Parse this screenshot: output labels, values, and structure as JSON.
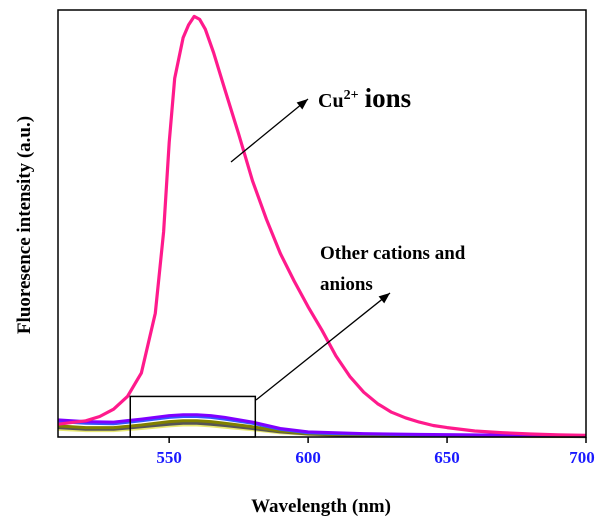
{
  "chart_data": {
    "type": "line",
    "xlabel": "Wavelength (nm)",
    "ylabel": "Fluoresence intensity (a.u.)",
    "xlim": [
      510,
      700
    ],
    "ylim": [
      0,
      1000
    ],
    "x_ticks": [
      550,
      600,
      650,
      700
    ],
    "y_ticks_labeled": false,
    "grid": false,
    "tick_label_color": "#1a1aff",
    "series": [
      {
        "color": "#ff1a8c",
        "x": [
          510,
          520,
          525,
          530,
          535,
          540,
          545,
          548,
          550,
          552,
          555,
          557,
          559,
          561,
          563,
          566,
          570,
          575,
          580,
          585,
          590,
          595,
          600,
          605,
          610,
          615,
          620,
          625,
          630,
          635,
          640,
          645,
          650,
          660,
          670,
          680,
          690,
          700
        ],
        "y": [
          30,
          38,
          48,
          65,
          95,
          150,
          290,
          480,
          690,
          840,
          935,
          965,
          985,
          978,
          955,
          900,
          815,
          710,
          600,
          510,
          430,
          365,
          305,
          250,
          190,
          142,
          105,
          78,
          58,
          45,
          35,
          27,
          22,
          14,
          10,
          7,
          5,
          4
        ]
      },
      {
        "color": "#7f00ff",
        "x": [
          510,
          520,
          530,
          540,
          550,
          555,
          560,
          565,
          570,
          580,
          590,
          600,
          610,
          620,
          640,
          660,
          680,
          700
        ],
        "y": [
          40,
          36,
          35,
          42,
          50,
          52,
          52,
          50,
          46,
          35,
          20,
          12,
          10,
          8,
          6,
          5,
          4,
          3
        ]
      },
      {
        "color": "#3355ff",
        "x": [
          510,
          520,
          530,
          540,
          550,
          555,
          560,
          565,
          570,
          580,
          590,
          600,
          610,
          620,
          640,
          660,
          680,
          700
        ],
        "y": [
          36,
          32,
          31,
          38,
          46,
          48,
          48,
          46,
          42,
          32,
          18,
          10,
          8,
          7,
          5,
          4,
          3,
          2
        ]
      },
      {
        "color": "#808000",
        "x": [
          510,
          520,
          530,
          540,
          550,
          555,
          560,
          565,
          570,
          580,
          590,
          600,
          610,
          620,
          640,
          660,
          680,
          700
        ],
        "y": [
          26,
          22,
          22,
          28,
          36,
          38,
          38,
          36,
          32,
          24,
          14,
          8,
          6,
          5,
          4,
          3,
          2,
          2
        ]
      },
      {
        "color": "#555555",
        "x": [
          510,
          520,
          530,
          540,
          550,
          555,
          560,
          565,
          570,
          580,
          590,
          600,
          610,
          620,
          640,
          660,
          680,
          700
        ],
        "y": [
          22,
          18,
          18,
          24,
          30,
          32,
          32,
          30,
          27,
          20,
          12,
          7,
          5,
          4,
          3,
          2,
          2,
          1
        ]
      },
      {
        "color": "#e8e870",
        "x": [
          510,
          520,
          530,
          540,
          550,
          555,
          560,
          565,
          570,
          580,
          590,
          600,
          610,
          620,
          640,
          660,
          680,
          700
        ],
        "y": [
          18,
          15,
          15,
          20,
          26,
          28,
          28,
          26,
          23,
          17,
          10,
          6,
          4,
          3,
          2,
          2,
          1,
          1
        ]
      }
    ],
    "annotations": [
      {
        "base": "Cu",
        "sup": "2+",
        "rest": "ions"
      },
      {
        "lines": [
          "Other cations and",
          "anions"
        ]
      }
    ],
    "inset_box": {
      "x": [
        536,
        581
      ],
      "y": [
        0,
        95
      ]
    }
  }
}
